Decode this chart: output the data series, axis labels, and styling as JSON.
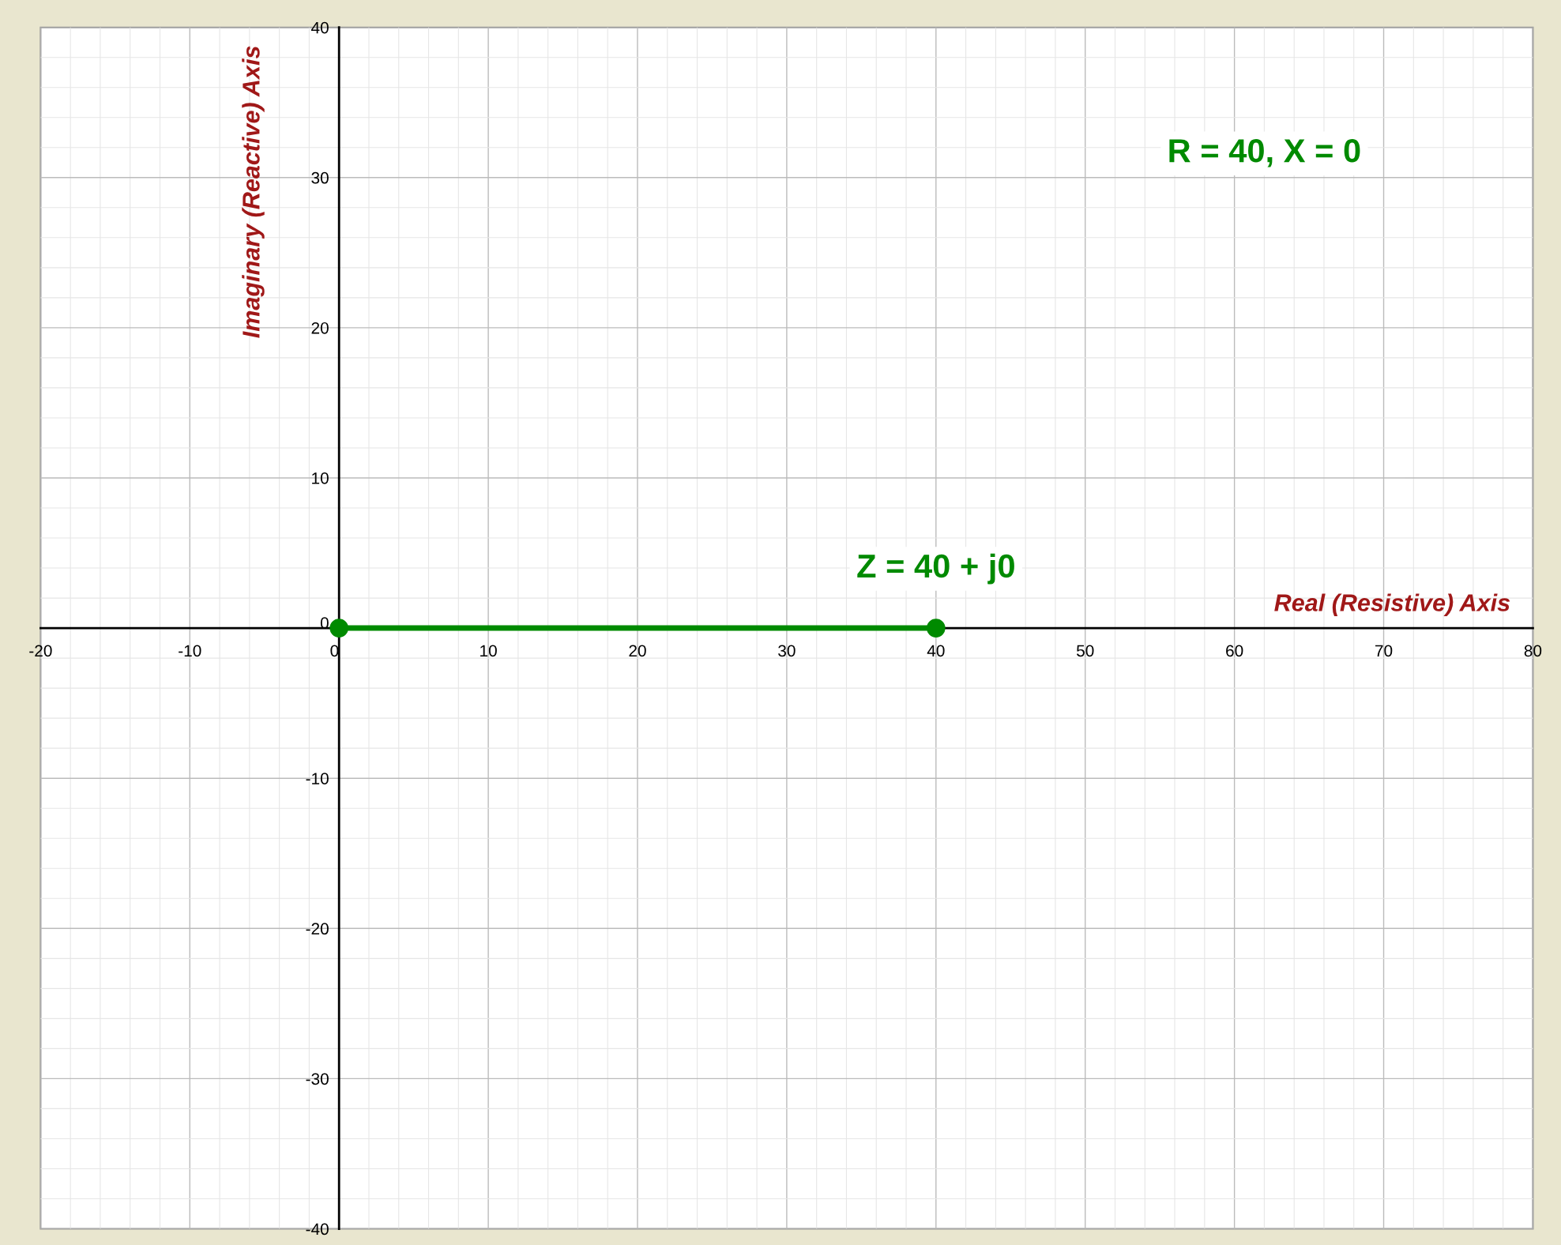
{
  "chart_data": {
    "type": "line",
    "xlabel": "Real (Resistive) Axis",
    "ylabel": "Imaginary (Reactive) Axis",
    "xlim": [
      -20,
      80
    ],
    "xticks": [
      -20,
      -10,
      0,
      10,
      20,
      30,
      40,
      50,
      60,
      70,
      80
    ],
    "ylim": [
      -40,
      40
    ],
    "yticks": [
      -40,
      -30,
      -20,
      -10,
      0,
      10,
      20,
      30,
      40
    ],
    "grid": true,
    "marker": "circle",
    "line_style": "solid",
    "series": [
      {
        "x": [
          0,
          40
        ],
        "values": [
          0,
          0
        ],
        "color": "#008a00"
      }
    ],
    "annotations": [
      "R = 40, X = 0",
      {
        "text": "Z = 40 + j0",
        "x": 40,
        "y": 0
      }
    ]
  }
}
